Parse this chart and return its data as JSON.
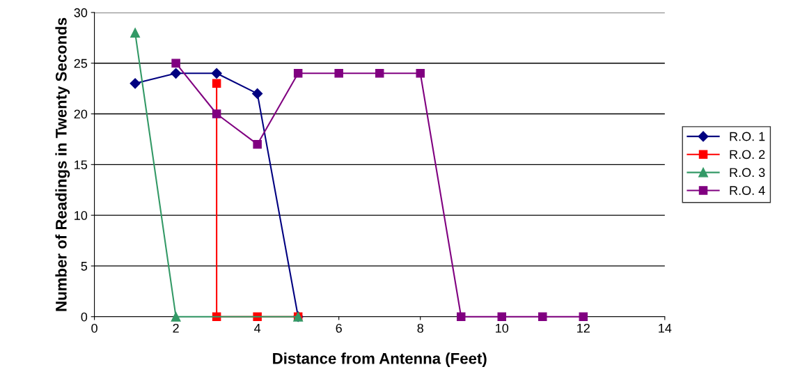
{
  "chart_data": {
    "type": "line",
    "xlabel": "Distance from Antenna (Feet)",
    "ylabel": "Number of Readings in Twenty Seconds",
    "xlim": [
      0,
      14
    ],
    "xticks": [
      0,
      2,
      4,
      6,
      8,
      10,
      12,
      14
    ],
    "ylim": [
      0,
      30
    ],
    "yticks": [
      0,
      5,
      10,
      15,
      20,
      25,
      30
    ],
    "grid": "y",
    "legend": "right",
    "series": [
      {
        "name": "R.O. 1",
        "color": "#000080",
        "marker": "diamond",
        "x": [
          1,
          2,
          3,
          4,
          5
        ],
        "values": [
          23,
          24,
          24,
          22,
          0
        ]
      },
      {
        "name": "R.O. 2",
        "color": "#ff0000",
        "marker": "square",
        "x": [
          3,
          3,
          4,
          5
        ],
        "values": [
          23,
          0,
          0,
          0
        ]
      },
      {
        "name": "R.O. 3",
        "color": "#339966",
        "marker": "triangle",
        "x": [
          1,
          2,
          5
        ],
        "values": [
          28,
          0,
          0
        ]
      },
      {
        "name": "R.O. 4",
        "color": "#800080",
        "marker": "square",
        "x": [
          2,
          3,
          4,
          5,
          6,
          7,
          8,
          9,
          10,
          11,
          12
        ],
        "values": [
          25,
          20,
          17,
          24,
          24,
          24,
          24,
          0,
          0,
          0,
          0
        ]
      }
    ]
  }
}
